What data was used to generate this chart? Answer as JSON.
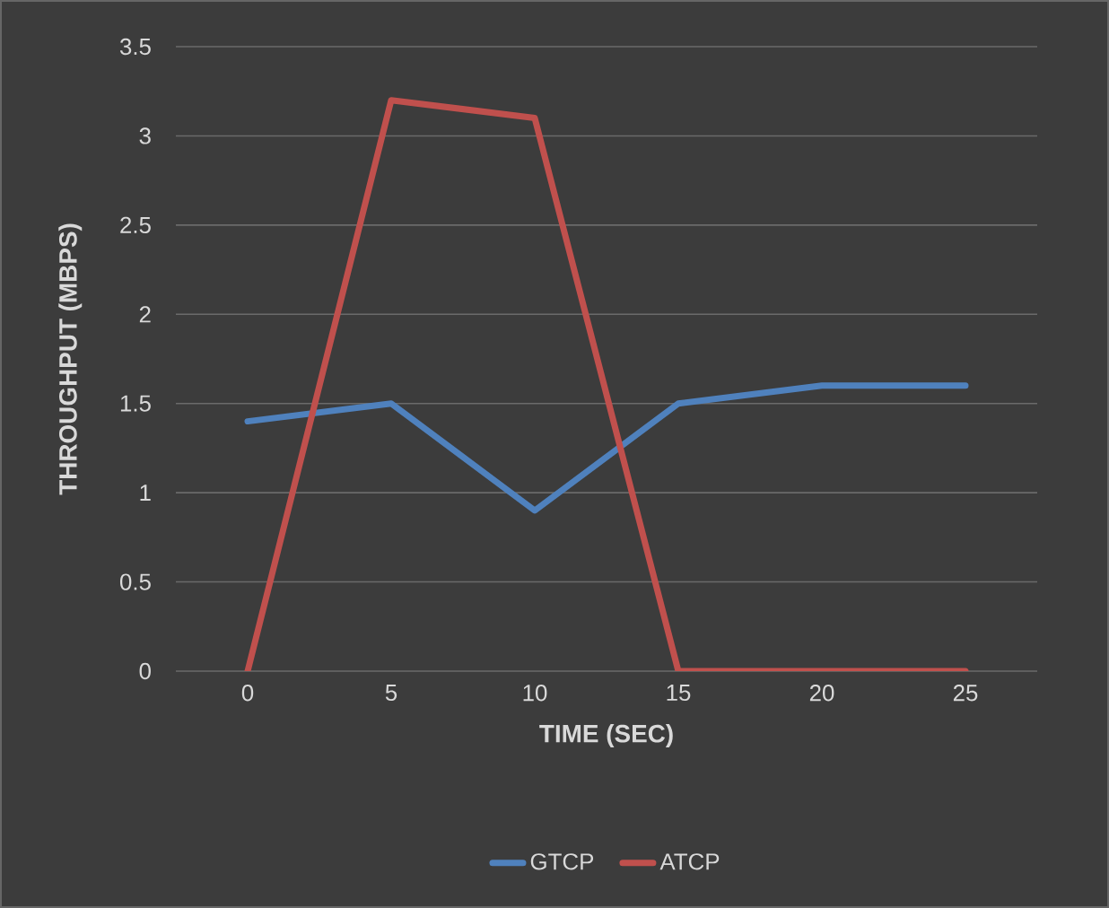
{
  "chart_data": {
    "type": "line",
    "xlabel": "TIME (SEC)",
    "ylabel": "THROUGHPUT (MBPS)",
    "categories": [
      "0",
      "5",
      "10",
      "15",
      "20",
      "25"
    ],
    "series": [
      {
        "name": "GTCP",
        "color": "#4f81bd",
        "values": [
          1.4,
          1.5,
          0.9,
          1.5,
          1.6,
          1.6
        ]
      },
      {
        "name": "ATCP",
        "color": "#c0504d",
        "values": [
          0,
          3.2,
          3.1,
          0,
          0,
          0
        ]
      }
    ],
    "ylim": [
      0,
      3.5
    ],
    "yticks": [
      0,
      0.5,
      1,
      1.5,
      2,
      2.5,
      3,
      3.5
    ],
    "grid": "y",
    "legend": "bottom",
    "marker": "none",
    "line_style": "solid"
  }
}
